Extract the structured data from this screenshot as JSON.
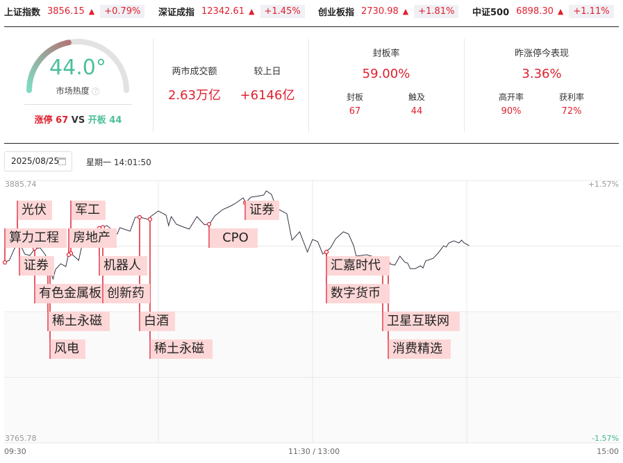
{
  "indices": [
    {
      "name": "上证指数",
      "price": "3856.15",
      "arrow": "▲",
      "change": "+0.79%"
    },
    {
      "name": "深证成指",
      "price": "12342.61",
      "arrow": "▲",
      "change": "+1.45%"
    },
    {
      "name": "创业板指",
      "price": "2730.98",
      "arrow": "▲",
      "change": "+1.81%"
    },
    {
      "name": "中证500",
      "price": "6898.30",
      "arrow": "▲",
      "change": "+1.11%"
    }
  ],
  "heat": {
    "value": "44.0°",
    "level": 44,
    "label": "市场热度",
    "help_icon": "question-circle-icon",
    "limit_up_label": "涨停",
    "limit_up": "67",
    "vs": "VS",
    "open_label": "开板",
    "open": "44",
    "colors": {
      "gauge_start": "#7fdcc4",
      "gauge_end": "#b07878",
      "value": "#4cbf9c"
    }
  },
  "turnover": {
    "label": "两市成交额",
    "value": "2.63万亿",
    "diff_label": "较上日",
    "diff": "+6146亿"
  },
  "seal": {
    "label": "封板率",
    "value": "59.00%",
    "sealed_label": "封板",
    "sealed": "67",
    "touched_label": "触及",
    "touched": "44"
  },
  "yesterday": {
    "label": "昨涨停今表现",
    "value": "3.36%",
    "high_open_label": "高开率",
    "high_open": "90%",
    "profit_label": "获利率",
    "profit": "72%"
  },
  "toolbar": {
    "date": "2025/08/25",
    "calendar_icon": "calendar-icon",
    "weekday_time": "星期一 14:01:50"
  },
  "chart_data": {
    "type": "line",
    "ylim": [
      3765.78,
      3885.74
    ],
    "y_top_label": "3885.74",
    "y_bottom_label": "3765.78",
    "pct_top_label": "+1.57%",
    "pct_bottom_label": "-1.57%",
    "x_labels": [
      "09:30",
      "11:30 / 13:00",
      "15:00"
    ],
    "grid": true,
    "colors": {
      "line": "#333344",
      "marker": "#e0202e",
      "tag_bg": "#fdd7d7",
      "up": "#e0202e",
      "down": "#3cb58f"
    },
    "series": [
      [
        "09:30",
        3848.29
      ],
      [
        "09:32",
        3849.24
      ],
      [
        "09:34",
        3854.64
      ],
      [
        "09:36",
        3857.18
      ],
      [
        "09:38",
        3852.1
      ],
      [
        "09:40",
        3851.46
      ],
      [
        "09:42",
        3854.64
      ],
      [
        "09:44",
        3854.96
      ],
      [
        "09:46",
        3851.78
      ],
      [
        "09:49",
        3840.68
      ],
      [
        "09:50",
        3845.12
      ],
      [
        "09:52",
        3847.66
      ],
      [
        "09:54",
        3846.39
      ],
      [
        "09:55",
        3851.78
      ],
      [
        "09:56",
        3852.42
      ],
      [
        "09:59",
        3849.24
      ],
      [
        "10:00",
        3854.64
      ],
      [
        "10:02",
        3860.35
      ],
      [
        "10:06",
        3863.52
      ],
      [
        "10:10",
        3865.11
      ],
      [
        "10:14",
        3861.3
      ],
      [
        "10:15",
        3864.16
      ],
      [
        "10:19",
        3862.57
      ],
      [
        "10:21",
        3868.92
      ],
      [
        "10:23",
        3868.92
      ],
      [
        "10:26",
        3867.97
      ],
      [
        "10:27",
        3869.24
      ],
      [
        "10:30",
        3871.78
      ],
      [
        "10:33",
        3869.87
      ],
      [
        "10:34",
        3865.11
      ],
      [
        "10:35",
        3869.24
      ],
      [
        "10:37",
        3865.75
      ],
      [
        "10:39",
        3864.79
      ],
      [
        "10:42",
        3863.52
      ],
      [
        "10:45",
        3869.24
      ],
      [
        "10:48",
        3865.43
      ],
      [
        "10:50",
        3866.06
      ],
      [
        "10:52",
        3869.55
      ],
      [
        "10:55",
        3872.41
      ],
      [
        "10:58",
        3874.0
      ],
      [
        "11:00",
        3875.27
      ],
      [
        "11:03",
        3877.81
      ],
      [
        "11:04",
        3875.58
      ],
      [
        "11:06",
        3878.12
      ],
      [
        "11:08",
        3878.44
      ],
      [
        "11:11",
        3879.07
      ],
      [
        "11:12",
        3880.98
      ],
      [
        "11:14",
        3879.39
      ],
      [
        "11:16",
        3873.05
      ],
      [
        "11:20",
        3870.51
      ],
      [
        "11:22",
        3858.45
      ],
      [
        "11:25",
        3862.26
      ],
      [
        "11:28",
        3853.05
      ],
      [
        "13:00",
        3858.76
      ],
      [
        "13:02",
        3857.81
      ],
      [
        "13:04",
        3852.1
      ],
      [
        "13:05",
        3853.05
      ],
      [
        "13:07",
        3854.96
      ],
      [
        "13:09",
        3859.08
      ],
      [
        "13:12",
        3862.26
      ],
      [
        "13:14",
        3861.3
      ],
      [
        "13:16",
        3855.91
      ],
      [
        "13:17",
        3851.15
      ],
      [
        "13:21",
        3851.78
      ],
      [
        "13:23",
        3851.15
      ],
      [
        "13:27",
        3848.29
      ],
      [
        "13:30",
        3847.66
      ],
      [
        "13:32",
        3847.02
      ],
      [
        "13:34",
        3851.15
      ],
      [
        "13:36",
        3848.29
      ],
      [
        "13:37",
        3847.97
      ],
      [
        "13:38",
        3845.44
      ],
      [
        "13:40",
        3845.44
      ],
      [
        "13:42",
        3846.71
      ],
      [
        "13:43",
        3845.75
      ],
      [
        "13:44",
        3848.93
      ],
      [
        "13:47",
        3850.2
      ],
      [
        "13:49",
        3852.73
      ],
      [
        "13:51",
        3855.91
      ],
      [
        "13:52",
        3855.27
      ],
      [
        "13:53",
        3857.18
      ],
      [
        "13:55",
        3858.13
      ],
      [
        "13:57",
        3857.18
      ],
      [
        "13:58",
        3858.45
      ],
      [
        "13:59",
        3857.18
      ],
      [
        "14:01",
        3855.91
      ]
    ],
    "annotations": [
      {
        "text": "光伏",
        "time": "09:35"
      },
      {
        "text": "算力工程",
        "time": "09:30"
      },
      {
        "text": "证券",
        "time": "09:36"
      },
      {
        "text": "有色金属板",
        "time": "09:42"
      },
      {
        "text": "稀土永磁",
        "time": "09:47"
      },
      {
        "text": "风电",
        "time": "09:48"
      },
      {
        "text": "军工",
        "time": "09:56"
      },
      {
        "text": "房地产",
        "time": "09:55"
      },
      {
        "text": "机器人",
        "time": "10:07"
      },
      {
        "text": "创新药",
        "time": "10:08"
      },
      {
        "text": "白酒",
        "time": "10:22"
      },
      {
        "text": "稀土永磁",
        "time": "10:26"
      },
      {
        "text": "CPO",
        "time": "10:49"
      },
      {
        "text": "证券",
        "time": "11:04"
      },
      {
        "text": "汇嘉时代",
        "time": "13:05"
      },
      {
        "text": "数字货币",
        "time": "13:05"
      },
      {
        "text": "卫星互联网",
        "time": "13:27"
      },
      {
        "text": "消费精选",
        "time": "13:29"
      }
    ]
  }
}
